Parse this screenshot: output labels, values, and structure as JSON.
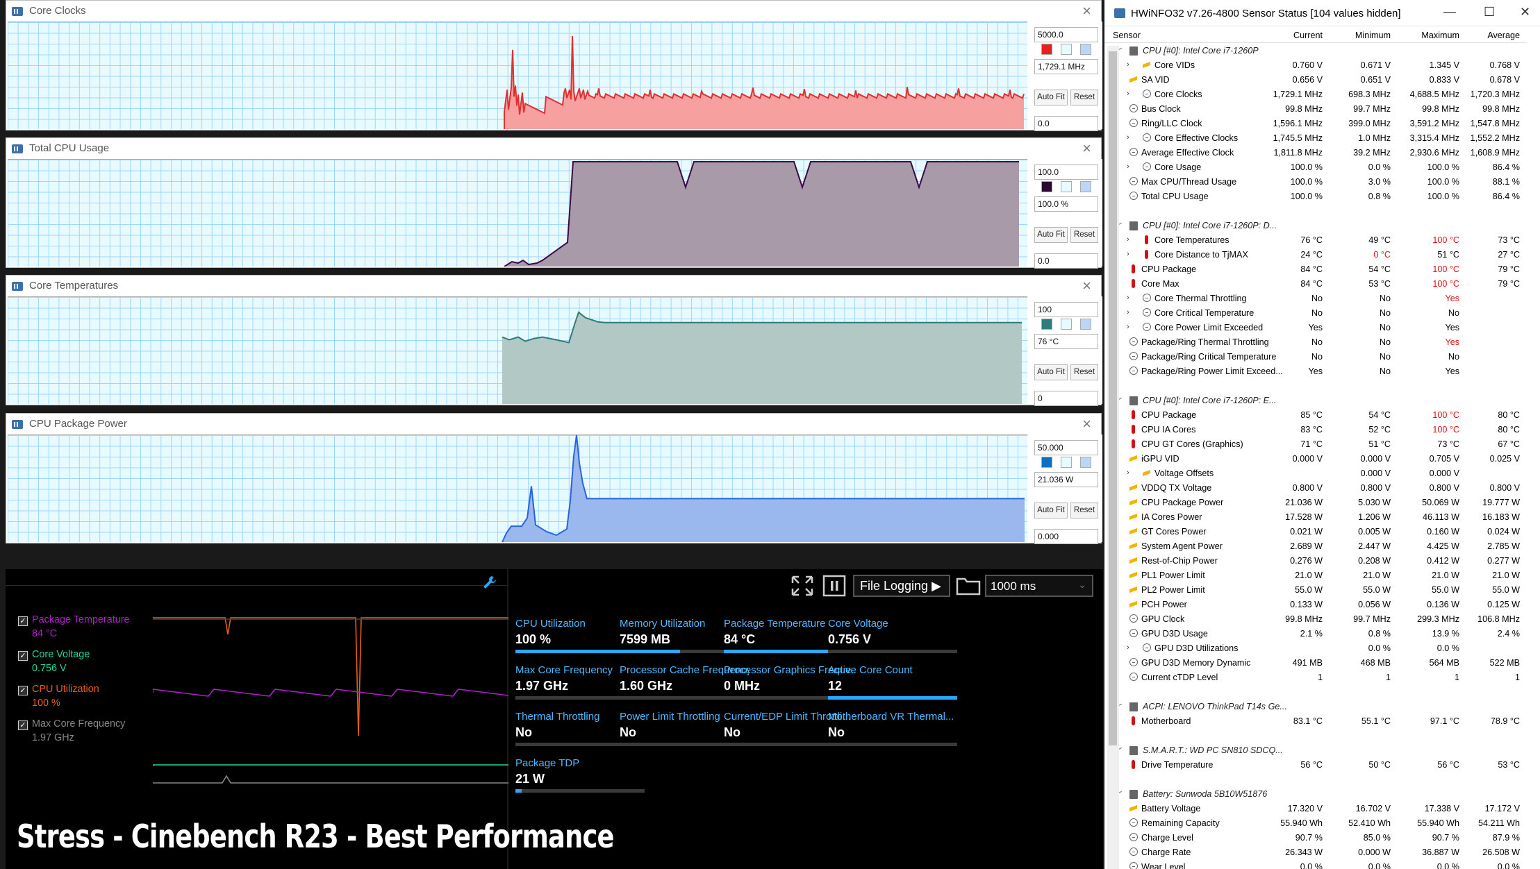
{
  "graphs": [
    {
      "title": "Core Clocks",
      "max": "5000.0",
      "current": "1,729.1 MHz",
      "min": "0.0",
      "autofit": "Auto Fit",
      "reset": "Reset",
      "swatch": "#e82020",
      "line": "#e03030",
      "fill": "#f6a0a0"
    },
    {
      "title": "Total CPU Usage",
      "max": "100.0",
      "current": "100.0 %",
      "min": "0.0",
      "autofit": "Auto Fit",
      "reset": "Reset",
      "swatch": "#2a0a30",
      "line": "#3a0848",
      "fill": "#a89aa8"
    },
    {
      "title": "Core Temperatures",
      "max": "100",
      "current": "76 °C",
      "min": "0",
      "autofit": "Auto Fit",
      "reset": "Reset",
      "swatch": "#2e7c7c",
      "line": "#2d7c7a",
      "fill": "#b2c8c4"
    },
    {
      "title": "CPU Package Power",
      "max": "50.000",
      "current": "21.036 W",
      "min": "0.000",
      "autofit": "Auto Fit",
      "reset": "Reset",
      "swatch": "#1070c0",
      "line": "#2a64d8",
      "fill": "#9ab8ee"
    }
  ],
  "hwinfo": {
    "title": "HWiNFO32 v7.26-4800 Sensor Status [104 values hidden]",
    "controls": {
      "minimize": "—",
      "maximize": "☐",
      "close": "✕"
    },
    "columns": [
      "Sensor",
      "Current",
      "Minimum",
      "Maximum",
      "Average"
    ],
    "rows": [
      {
        "g": 1,
        "l": "CPU [#0]: Intel Core i7-1260P"
      },
      {
        "i": "v",
        "e": 1,
        "l": "Core VIDs",
        "c": "0.760 V",
        "n": "0.671 V",
        "x": "1.345 V",
        "a": "0.768 V"
      },
      {
        "i": "v",
        "l": "SA VID",
        "c": "0.656 V",
        "n": "0.651 V",
        "x": "0.833 V",
        "a": "0.678 V"
      },
      {
        "i": "c",
        "e": 1,
        "l": "Core Clocks",
        "c": "1,729.1 MHz",
        "n": "698.3 MHz",
        "x": "4,688.5 MHz",
        "a": "1,720.3 MHz"
      },
      {
        "i": "c",
        "l": "Bus Clock",
        "c": "99.8 MHz",
        "n": "99.7 MHz",
        "x": "99.8 MHz",
        "a": "99.8 MHz"
      },
      {
        "i": "c",
        "l": "Ring/LLC Clock",
        "c": "1,596.1 MHz",
        "n": "399.0 MHz",
        "x": "3,591.2 MHz",
        "a": "1,547.8 MHz"
      },
      {
        "i": "c",
        "e": 1,
        "l": "Core Effective Clocks",
        "c": "1,745.5 MHz",
        "n": "1.0 MHz",
        "x": "3,315.4 MHz",
        "a": "1,552.2 MHz"
      },
      {
        "i": "c",
        "l": "Average Effective Clock",
        "c": "1,811.8 MHz",
        "n": "39.2 MHz",
        "x": "2,930.6 MHz",
        "a": "1,608.9 MHz"
      },
      {
        "i": "c",
        "e": 1,
        "l": "Core Usage",
        "c": "100.0 %",
        "n": "0.0 %",
        "x": "100.0 %",
        "a": "86.4 %"
      },
      {
        "i": "c",
        "l": "Max CPU/Thread Usage",
        "c": "100.0 %",
        "n": "3.0 %",
        "x": "100.0 %",
        "a": "88.1 %"
      },
      {
        "i": "c",
        "l": "Total CPU Usage",
        "c": "100.0 %",
        "n": "0.8 %",
        "x": "100.0 %",
        "a": "86.4 %"
      },
      {
        "s": 1
      },
      {
        "g": 1,
        "l": "CPU [#0]: Intel Core i7-1260P: D..."
      },
      {
        "i": "t",
        "e": 1,
        "l": "Core Temperatures",
        "c": "76 °C",
        "n": "49 °C",
        "x": "100 °C",
        "xr": 1,
        "a": "73 °C"
      },
      {
        "i": "t",
        "e": 1,
        "l": "Core Distance to TjMAX",
        "c": "24 °C",
        "n": "0 °C",
        "nr": 1,
        "x": "51 °C",
        "a": "27 °C"
      },
      {
        "i": "t",
        "l": "CPU Package",
        "c": "84 °C",
        "n": "54 °C",
        "x": "100 °C",
        "xr": 1,
        "a": "79 °C"
      },
      {
        "i": "t",
        "l": "Core Max",
        "c": "84 °C",
        "n": "53 °C",
        "x": "100 °C",
        "xr": 1,
        "a": "79 °C"
      },
      {
        "i": "c",
        "e": 1,
        "l": "Core Thermal Throttling",
        "c": "No",
        "n": "No",
        "x": "Yes",
        "xr": 1,
        "a": ""
      },
      {
        "i": "c",
        "e": 1,
        "l": "Core Critical Temperature",
        "c": "No",
        "n": "No",
        "x": "No",
        "a": ""
      },
      {
        "i": "c",
        "e": 1,
        "l": "Core Power Limit Exceeded",
        "c": "Yes",
        "n": "No",
        "x": "Yes",
        "a": ""
      },
      {
        "i": "c",
        "l": "Package/Ring Thermal Throttling",
        "c": "No",
        "n": "No",
        "x": "Yes",
        "xr": 1,
        "a": ""
      },
      {
        "i": "c",
        "l": "Package/Ring Critical Temperature",
        "c": "No",
        "n": "No",
        "x": "No",
        "a": ""
      },
      {
        "i": "c",
        "l": "Package/Ring Power Limit Exceed...",
        "c": "Yes",
        "n": "No",
        "x": "Yes",
        "a": ""
      },
      {
        "s": 1
      },
      {
        "g": 1,
        "l": "CPU [#0]: Intel Core i7-1260P: E..."
      },
      {
        "i": "t",
        "l": "CPU Package",
        "c": "85 °C",
        "n": "54 °C",
        "x": "100 °C",
        "xr": 1,
        "a": "80 °C"
      },
      {
        "i": "t",
        "l": "CPU IA Cores",
        "c": "83 °C",
        "n": "52 °C",
        "x": "100 °C",
        "xr": 1,
        "a": "80 °C"
      },
      {
        "i": "t",
        "l": "CPU GT Cores (Graphics)",
        "c": "71 °C",
        "n": "51 °C",
        "x": "73 °C",
        "a": "67 °C"
      },
      {
        "i": "v",
        "l": "iGPU VID",
        "c": "0.000 V",
        "n": "0.000 V",
        "x": "0.705 V",
        "a": "0.025 V"
      },
      {
        "i": "v",
        "e": 1,
        "l": "Voltage Offsets",
        "c": "",
        "n": "0.000 V",
        "x": "0.000 V",
        "a": ""
      },
      {
        "i": "v",
        "l": "VDDQ TX Voltage",
        "c": "0.800 V",
        "n": "0.800 V",
        "x": "0.800 V",
        "a": "0.800 V"
      },
      {
        "i": "v",
        "l": "CPU Package Power",
        "c": "21.036 W",
        "n": "5.030 W",
        "x": "50.069 W",
        "a": "19.777 W"
      },
      {
        "i": "v",
        "l": "IA Cores Power",
        "c": "17.528 W",
        "n": "1.206 W",
        "x": "46.113 W",
        "a": "16.183 W"
      },
      {
        "i": "v",
        "l": "GT Cores Power",
        "c": "0.021 W",
        "n": "0.005 W",
        "x": "0.160 W",
        "a": "0.024 W"
      },
      {
        "i": "v",
        "l": "System Agent Power",
        "c": "2.689 W",
        "n": "2.447 W",
        "x": "4.425 W",
        "a": "2.785 W"
      },
      {
        "i": "v",
        "l": "Rest-of-Chip Power",
        "c": "0.276 W",
        "n": "0.208 W",
        "x": "0.412 W",
        "a": "0.277 W"
      },
      {
        "i": "v",
        "l": "PL1 Power Limit",
        "c": "21.0 W",
        "n": "21.0 W",
        "x": "21.0 W",
        "a": "21.0 W"
      },
      {
        "i": "v",
        "l": "PL2 Power Limit",
        "c": "55.0 W",
        "n": "55.0 W",
        "x": "55.0 W",
        "a": "55.0 W"
      },
      {
        "i": "v",
        "l": "PCH Power",
        "c": "0.133 W",
        "n": "0.056 W",
        "x": "0.136 W",
        "a": "0.125 W"
      },
      {
        "i": "c",
        "l": "GPU Clock",
        "c": "99.8 MHz",
        "n": "99.7 MHz",
        "x": "299.3 MHz",
        "a": "106.8 MHz"
      },
      {
        "i": "c",
        "l": "GPU D3D Usage",
        "c": "2.1 %",
        "n": "0.8 %",
        "x": "13.9 %",
        "a": "2.4 %"
      },
      {
        "i": "c",
        "e": 1,
        "l": "GPU D3D Utilizations",
        "c": "",
        "n": "0.0 %",
        "x": "0.0 %",
        "a": ""
      },
      {
        "i": "c",
        "l": "GPU D3D Memory Dynamic",
        "c": "491 MB",
        "n": "468 MB",
        "x": "564 MB",
        "a": "522 MB"
      },
      {
        "i": "c",
        "l": "Current cTDP Level",
        "c": "1",
        "n": "1",
        "x": "1",
        "a": "1"
      },
      {
        "s": 1
      },
      {
        "g": 1,
        "l": "ACPI: LENOVO ThinkPad T14s Ge..."
      },
      {
        "i": "t",
        "l": "Motherboard",
        "c": "83.1 °C",
        "n": "55.1 °C",
        "x": "97.1 °C",
        "a": "78.9 °C"
      },
      {
        "s": 1
      },
      {
        "g": 1,
        "l": "S.M.A.R.T.: WD PC SN810 SDCQ..."
      },
      {
        "i": "t",
        "l": "Drive Temperature",
        "c": "56 °C",
        "n": "50 °C",
        "x": "56 °C",
        "a": "53 °C"
      },
      {
        "s": 1
      },
      {
        "g": 1,
        "l": "Battery: Sunwoda 5B10W51876"
      },
      {
        "i": "v",
        "l": "Battery Voltage",
        "c": "17.320 V",
        "n": "16.702 V",
        "x": "17.338 V",
        "a": "17.172 V"
      },
      {
        "i": "c",
        "l": "Remaining Capacity",
        "c": "55.940 Wh",
        "n": "52.410 Wh",
        "x": "55.940 Wh",
        "a": "54.211 Wh"
      },
      {
        "i": "c",
        "l": "Charge Level",
        "c": "90.7 %",
        "n": "85.0 %",
        "x": "90.7 %",
        "a": "87.9 %"
      },
      {
        "i": "c",
        "l": "Charge Rate",
        "c": "26.343 W",
        "n": "0.000 W",
        "x": "36.887 W",
        "a": "26.508 W"
      },
      {
        "i": "c",
        "l": "Wear Level",
        "c": "0.0 %",
        "n": "0.0 %",
        "x": "0.0 %",
        "a": "0.0 %"
      }
    ]
  },
  "monitor": {
    "legend": [
      {
        "label": "Package Temperature",
        "value": "84 °C",
        "color": "#b01ec8"
      },
      {
        "label": "Core Voltage",
        "value": "0.756 V",
        "color": "#1fd8a0"
      },
      {
        "label": "CPU Utilization",
        "value": "100 %",
        "color": "#e86010"
      },
      {
        "label": "Max Core Frequency",
        "value": "1.97 GHz",
        "color": "#888888"
      }
    ],
    "toolbar": {
      "file_logging": "File Logging ▶",
      "interval": "1000 ms"
    },
    "tiles": [
      {
        "label": "CPU Utilization",
        "value": "100 %",
        "fill": 1.0
      },
      {
        "label": "Memory Utilization",
        "value": "7599  MB",
        "fill": 0.47
      },
      {
        "label": "Package Temperature",
        "value": "84 °C",
        "fill": 0.84
      },
      {
        "label": "Core Voltage",
        "value": "0.756 V",
        "fill": 0.0
      },
      {
        "label": "Max Core Frequency",
        "value": "1.97 GHz",
        "fill": 0.0
      },
      {
        "label": "Processor Cache Frequency",
        "value": "1.60 GHz",
        "fill": 0.0
      },
      {
        "label": "Processor Graphics Freque...",
        "value": "0 MHz",
        "fill": 0.0
      },
      {
        "label": "Active Core Count",
        "value": "12",
        "fill": 1.0
      },
      {
        "label": "Thermal Throttling",
        "value": "No",
        "fill": 0.0
      },
      {
        "label": "Power Limit Throttling",
        "value": "No",
        "fill": 0.0
      },
      {
        "label": "Current/EDP Limit Throttli...",
        "value": "No",
        "fill": 0.0
      },
      {
        "label": "Motherboard VR Thermal...",
        "value": "No",
        "fill": 0.0
      },
      {
        "label": "Package TDP",
        "value": "21 W",
        "fill": 0.05
      }
    ]
  },
  "overlay": {
    "headline": "Stress - Cinebench R23 - Best Performance"
  }
}
